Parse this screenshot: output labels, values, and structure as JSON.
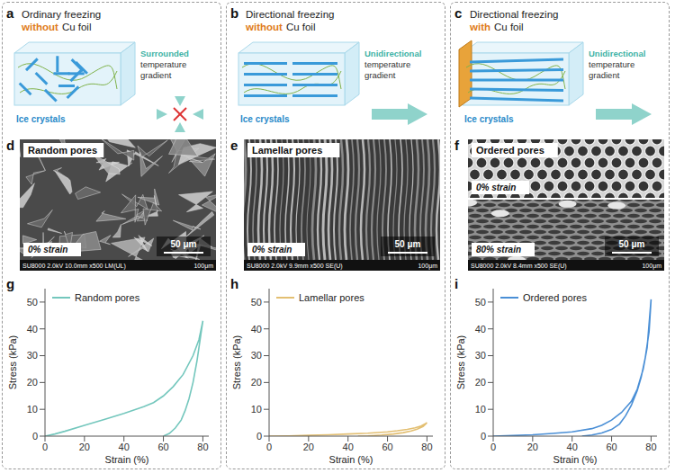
{
  "schematics": [
    {
      "letter": "a",
      "title_parts": [
        "Ordinary freezing",
        "without",
        "Cu foil"
      ],
      "crystals_label": "Ice crystals",
      "gradient_label": "Surrounded temperature gradient"
    },
    {
      "letter": "b",
      "title_parts": [
        "Directional freezing",
        "without",
        "Cu foil"
      ],
      "crystals_label": "Ice crystals",
      "gradient_label": "Unidirectional temperature gradient"
    },
    {
      "letter": "c",
      "title_parts": [
        "Directional freezing",
        "with",
        "Cu foil"
      ],
      "crystals_label": "Ice crystals",
      "gradient_label": "Unidirectional temperature gradient"
    }
  ],
  "micrographs": [
    {
      "letter": "d",
      "title": "Random pores",
      "strains": [
        "0% strain"
      ],
      "scale_bar": "50 μm",
      "footer": [
        "SU8000 2.0kV 10.0mm x500 LM(UL)",
        "100μm"
      ]
    },
    {
      "letter": "e",
      "title": "Lamellar pores",
      "strains": [
        "0% strain"
      ],
      "scale_bar": "50 μm",
      "footer": [
        "SU8000 2.0kV 9.9mm x500 SE(U)",
        "100μm"
      ]
    },
    {
      "letter": "f",
      "title": "Ordered pores",
      "strains": [
        "0% strain",
        "80% strain"
      ],
      "scale_bar": "50 μm",
      "footer": [
        "SU8000 2.0kV 8.4mm x500 SE(U)",
        "100μm"
      ]
    }
  ],
  "chart_letters": [
    "g",
    "h",
    "i"
  ],
  "chart_data": [
    {
      "type": "line",
      "xlabel": "Strain (%)",
      "ylabel": "Stress (kPa)",
      "xlim": [
        0,
        83
      ],
      "xticks": [
        0,
        20,
        40,
        60,
        80
      ],
      "ylim": [
        0,
        55
      ],
      "yticks": [
        0,
        10,
        20,
        30,
        40,
        50
      ],
      "legend": "top-left",
      "x": [
        0,
        5,
        10,
        20,
        30,
        40,
        50,
        55,
        60,
        65,
        70,
        75,
        78,
        80,
        79,
        77,
        75,
        73,
        71,
        69,
        66,
        63,
        60
      ],
      "series": [
        {
          "name": "Random pores",
          "color": "#74c7bd",
          "values": [
            0,
            0.8,
            1.8,
            4,
            6.2,
            8.5,
            11,
            12.5,
            15,
            18.5,
            23,
            30,
            36,
            43,
            38,
            28,
            20,
            14,
            9.5,
            6,
            3,
            1,
            0
          ]
        }
      ]
    },
    {
      "type": "line",
      "xlabel": "Strain (%)",
      "ylabel": "Stress (kPa)",
      "xlim": [
        0,
        83
      ],
      "xticks": [
        0,
        20,
        40,
        60,
        80
      ],
      "ylim": [
        0,
        55
      ],
      "yticks": [
        0,
        10,
        20,
        30,
        40,
        50
      ],
      "legend": "top-left",
      "x": [
        0,
        10,
        20,
        30,
        40,
        50,
        60,
        65,
        70,
        74,
        77,
        80,
        78,
        75,
        72,
        68,
        63,
        57,
        50,
        45
      ],
      "series": [
        {
          "name": "Lamellar pores",
          "color": "#e3bf72",
          "values": [
            0,
            0.1,
            0.3,
            0.5,
            0.8,
            1.1,
            1.6,
            2,
            2.5,
            3.1,
            3.8,
            5,
            3.6,
            2.6,
            1.9,
            1.3,
            0.8,
            0.4,
            0.1,
            0
          ]
        }
      ]
    },
    {
      "type": "line",
      "xlabel": "Strain (%)",
      "ylabel": "Stress (kPa)",
      "xlim": [
        0,
        83
      ],
      "xticks": [
        0,
        20,
        40,
        60,
        80
      ],
      "ylim": [
        0,
        55
      ],
      "yticks": [
        0,
        10,
        20,
        30,
        40,
        50
      ],
      "legend": "top-left",
      "x": [
        0,
        10,
        20,
        30,
        40,
        50,
        55,
        60,
        65,
        70,
        73,
        76,
        78,
        80,
        79,
        77,
        75,
        73,
        70,
        67,
        64,
        60,
        55,
        50,
        45
      ],
      "series": [
        {
          "name": "Ordered pores",
          "color": "#4a8fd6",
          "values": [
            0,
            0.2,
            0.5,
            1,
            1.6,
            2.8,
            4,
            6,
            8.8,
            13,
            17.5,
            25,
            33,
            51,
            39,
            29,
            22,
            17,
            11.5,
            7.5,
            4.5,
            2.5,
            1.2,
            0.4,
            0
          ]
        }
      ]
    }
  ]
}
